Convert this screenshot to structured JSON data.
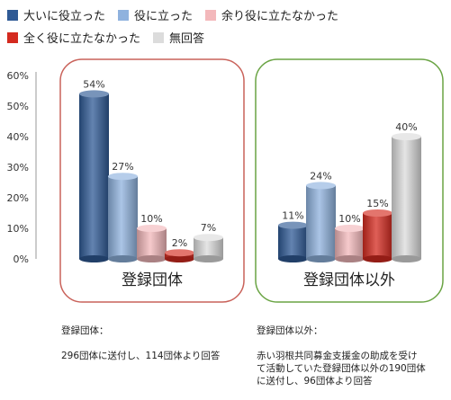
{
  "chart_data": {
    "type": "bar",
    "categories": [
      "登録団体",
      "登録団体以外"
    ],
    "series": [
      {
        "name": "大いに役立った",
        "values": [
          54,
          11
        ],
        "color": "#2f5a95"
      },
      {
        "name": "役に立った",
        "values": [
          27,
          24
        ],
        "color": "#8fb2de"
      },
      {
        "name": "余り役に立たなかった",
        "values": [
          10,
          10
        ],
        "color": "#f3b8bb"
      },
      {
        "name": "全く役に立たなかった",
        "values": [
          2,
          15
        ],
        "color": "#d42a1f"
      },
      {
        "name": "無回答",
        "values": [
          7,
          40
        ],
        "color": "#dcdcdc"
      }
    ],
    "value_labels": [
      [
        "54%",
        "27%",
        "10%",
        "2%",
        "7%"
      ],
      [
        "11%",
        "24%",
        "10%",
        "15%",
        "40%"
      ]
    ],
    "yticks": [
      "0%",
      "10%",
      "20%",
      "30%",
      "40%",
      "50%",
      "60%"
    ],
    "ylim": [
      0,
      60
    ],
    "group_frame_colors": [
      "#c9625a",
      "#6aa444"
    ]
  },
  "notes": [
    {
      "title": "登録団体：",
      "body": "296団体に送付し、114団体より回答"
    },
    {
      "title": "登録団体以外：",
      "body": "赤い羽根共同募金支援金の助成を受け\nて活動していた登録団体以外の190団体\nに送付し、96団体より回答"
    }
  ]
}
